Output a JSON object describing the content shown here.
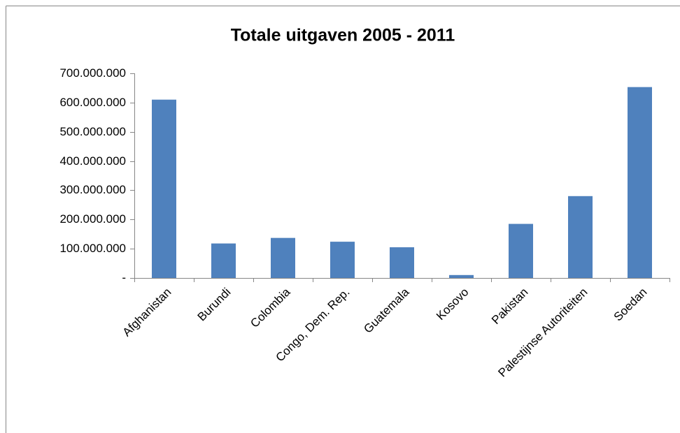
{
  "chart_data": {
    "type": "bar",
    "title": "Totale uitgaven 2005 - 2011",
    "categories": [
      "Afghanistan",
      "Burundi",
      "Colombia",
      "Congo, Dem. Rep.",
      "Guatemala",
      "Kosovo",
      "Pakistan",
      "Palestijnse Autoriteiten",
      "Soedan"
    ],
    "values": [
      610000000,
      118000000,
      137000000,
      124000000,
      105000000,
      10000000,
      185000000,
      280000000,
      653000000
    ],
    "color": "#4f81bd",
    "ylim": [
      0,
      700000000
    ],
    "yticks": [
      {
        "value": 0,
        "label": "-"
      },
      {
        "value": 100000000,
        "label": "100.000.000"
      },
      {
        "value": 200000000,
        "label": "200.000.000"
      },
      {
        "value": 300000000,
        "label": "300.000.000"
      },
      {
        "value": 400000000,
        "label": "400.000.000"
      },
      {
        "value": 500000000,
        "label": "500.000.000"
      },
      {
        "value": 600000000,
        "label": "600.000.000"
      },
      {
        "value": 700000000,
        "label": "700.000.000"
      }
    ],
    "grid": false
  }
}
